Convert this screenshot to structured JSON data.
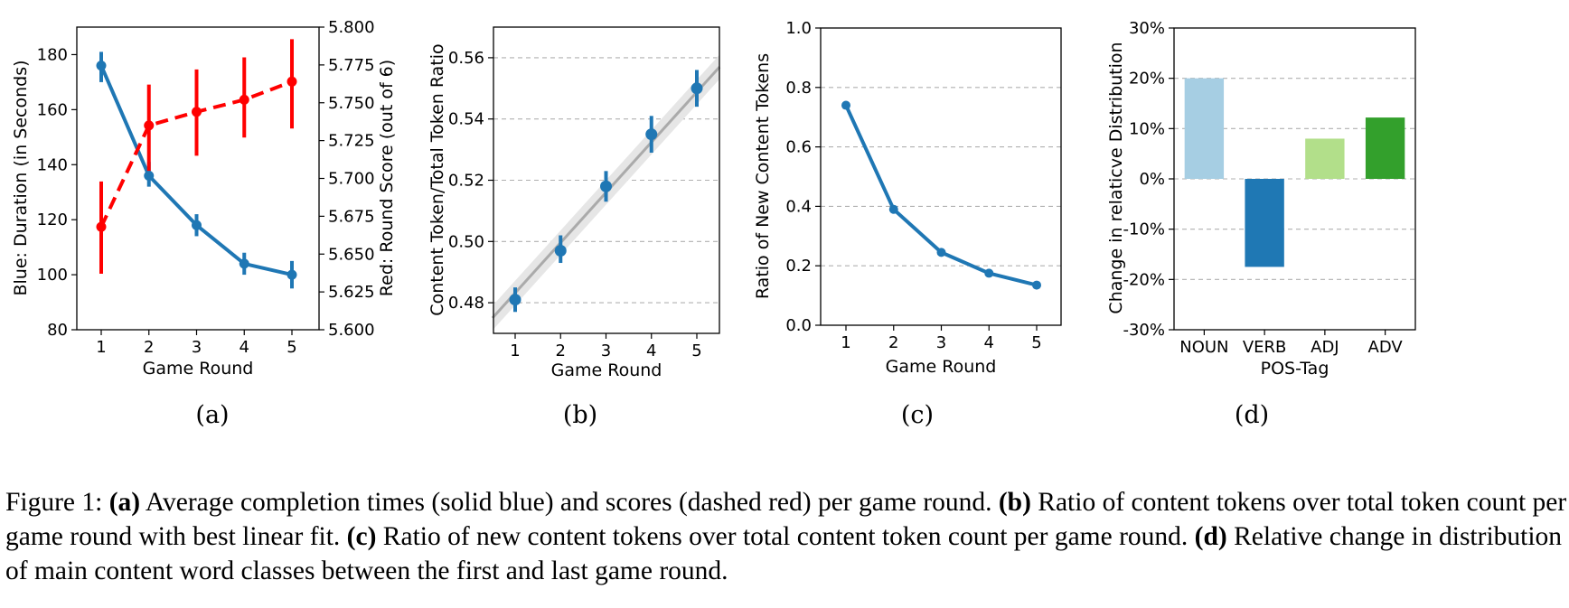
{
  "colors": {
    "blue": "#1f77b4",
    "red": "#ff0000",
    "fit_gray": "#aaaaaa",
    "grid": "#b0b0b0",
    "bars": [
      "#a6cee3",
      "#1f78b4",
      "#b2df8a",
      "#33a02c"
    ]
  },
  "chart_data": [
    {
      "type": "line",
      "x": [
        1,
        2,
        3,
        4,
        5
      ],
      "xlabel": "Game Round",
      "ylabel": "Blue: Duration (in Seconds)",
      "ylabel_right": "Red: Round Score (out of 6)",
      "ylim": [
        80,
        190
      ],
      "ylim_right": [
        5.6,
        5.8
      ],
      "yticks": [
        "80",
        "100",
        "120",
        "140",
        "160",
        "180"
      ],
      "yticks_right": [
        "5.600",
        "5.625",
        "5.650",
        "5.675",
        "5.700",
        "5.725",
        "5.750",
        "5.775",
        "5.800"
      ],
      "series": [
        {
          "axis": "left",
          "style": "solid",
          "color": "blue",
          "values": [
            176,
            136,
            118,
            104,
            100
          ],
          "err_low": [
            170,
            132,
            114,
            100,
            95
          ],
          "err_high": [
            181,
            141,
            122,
            108,
            105
          ]
        },
        {
          "axis": "right",
          "style": "dashed",
          "color": "red",
          "values": [
            5.668,
            5.735,
            5.744,
            5.752,
            5.764
          ],
          "err_low": [
            5.637,
            5.705,
            5.715,
            5.727,
            5.733
          ],
          "err_high": [
            5.698,
            5.762,
            5.772,
            5.78,
            5.792
          ]
        }
      ],
      "grid": false,
      "sublabel": "(a)"
    },
    {
      "type": "scatter",
      "x": [
        1,
        2,
        3,
        4,
        5
      ],
      "xlabel": "Game Round",
      "ylabel": "Content Token/Total Token Ratio",
      "ylim": [
        0.47,
        0.57
      ],
      "yticks": [
        "0.48",
        "0.50",
        "0.52",
        "0.54",
        "0.56"
      ],
      "series": [
        {
          "color": "blue",
          "values": [
            0.481,
            0.497,
            0.518,
            0.535,
            0.55
          ],
          "err_low": [
            0.477,
            0.493,
            0.513,
            0.529,
            0.544
          ],
          "err_high": [
            0.485,
            0.502,
            0.523,
            0.541,
            0.556
          ]
        }
      ],
      "fit_line": {
        "x": [
          0.5,
          5.5
        ],
        "y": [
          0.475,
          0.557
        ]
      },
      "grid": true,
      "sublabel": "(b)"
    },
    {
      "type": "line",
      "x": [
        1,
        2,
        3,
        4,
        5
      ],
      "xlabel": "Game Round",
      "ylabel": "Ratio of New Content Tokens",
      "ylim": [
        0.0,
        1.0
      ],
      "yticks": [
        "0.0",
        "0.2",
        "0.4",
        "0.6",
        "0.8",
        "1.0"
      ],
      "series": [
        {
          "color": "blue",
          "values": [
            0.74,
            0.39,
            0.245,
            0.175,
            0.135
          ]
        }
      ],
      "grid": true,
      "sublabel": "(c)"
    },
    {
      "type": "bar",
      "categories": [
        "NOUN",
        "VERB",
        "ADJ",
        "ADV"
      ],
      "values": [
        20,
        -17.5,
        8,
        12.2
      ],
      "xlabel": "POS-Tag",
      "ylabel": "Change in relaticve Distribution",
      "ylim": [
        -30,
        30
      ],
      "yticks": [
        "-30%",
        "-20%",
        "-10%",
        "0%",
        "10%",
        "20%",
        "30%"
      ],
      "grid": true,
      "sublabel": "(d)"
    }
  ],
  "caption": {
    "prefix": "Figure 1: ",
    "a_label": "(a)",
    "a_text": " Average completion times (solid blue) and scores (dashed red) per game round. ",
    "b_label": "(b)",
    "b_text": " Ratio of content tokens over total token count per game round with best linear fit. ",
    "c_label": "(c)",
    "c_text": " Ratio of new content tokens over total content token count per game round. ",
    "d_label": "(d)",
    "d_text": " Relative change in distribution of main content word classes between the first and last game round."
  }
}
